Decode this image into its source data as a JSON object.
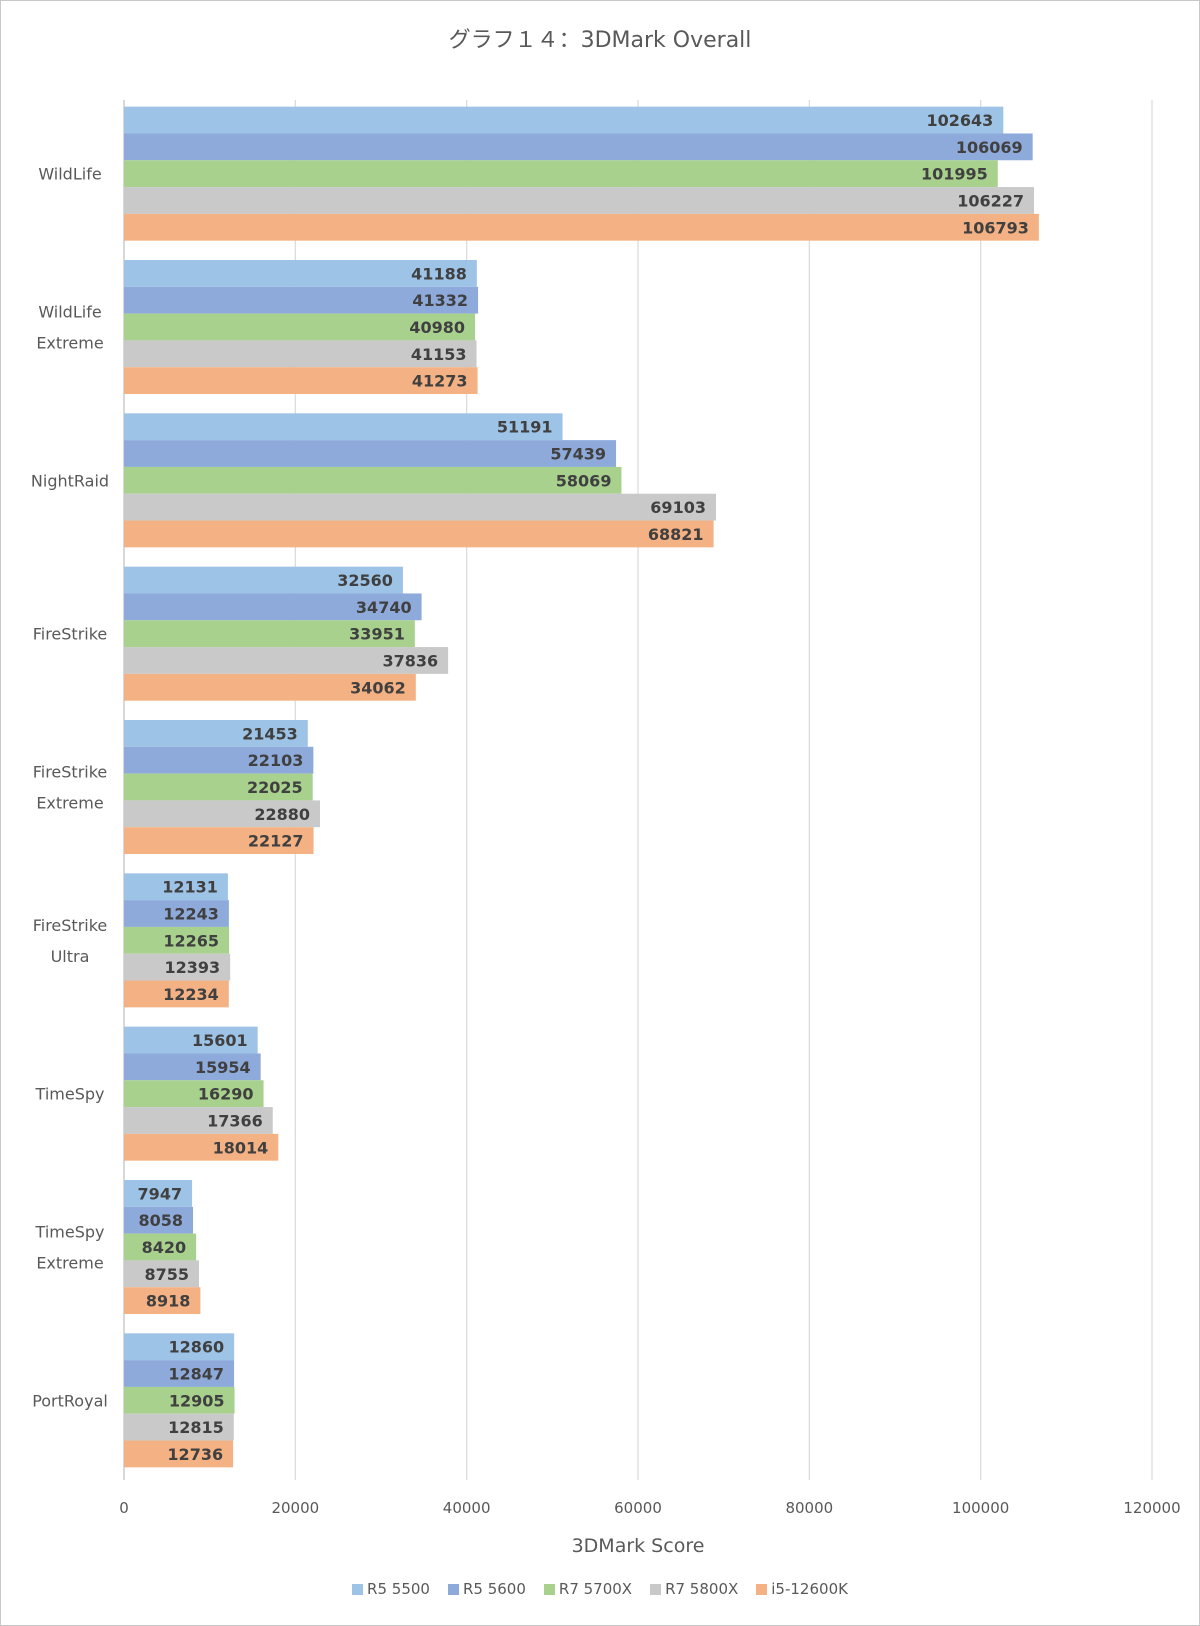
{
  "chart_data": {
    "type": "bar",
    "orientation": "horizontal",
    "title": "グラフ１４：3DMark Overall",
    "xlabel": "3DMark Score",
    "ylabel": "",
    "xlim": [
      0,
      120000
    ],
    "x_ticks": [
      "0",
      "20000",
      "40000",
      "60000",
      "80000",
      "100000",
      "120000"
    ],
    "grid": "vertical",
    "legend_position": "bottom",
    "data_labels": true,
    "categories": [
      [
        "WildLife"
      ],
      [
        "WildLife",
        "Extreme"
      ],
      [
        "NightRaid"
      ],
      [
        "FireStrike"
      ],
      [
        "FireStrike",
        "Extreme"
      ],
      [
        "FireStrike",
        "Ultra"
      ],
      [
        "TimeSpy"
      ],
      [
        "TimeSpy",
        "Extreme"
      ],
      [
        "PortRoyal"
      ]
    ],
    "series": [
      {
        "name": "R5 5500",
        "color": "#9dc3e6",
        "values": [
          102643,
          41188,
          51191,
          32560,
          21453,
          12131,
          15601,
          7947,
          12860
        ]
      },
      {
        "name": "R5 5600",
        "color": "#8eaadb",
        "values": [
          106069,
          41332,
          57439,
          34740,
          22103,
          12243,
          15954,
          8058,
          12847
        ]
      },
      {
        "name": "R7 5700X",
        "color": "#a9d18e",
        "values": [
          101995,
          40980,
          58069,
          33951,
          22025,
          12265,
          16290,
          8420,
          12905
        ]
      },
      {
        "name": "R7 5800X",
        "color": "#c9c9c9",
        "values": [
          106227,
          41153,
          69103,
          37836,
          22880,
          12393,
          17366,
          8755,
          12815
        ]
      },
      {
        "name": "i5-12600K",
        "color": "#f4b183",
        "values": [
          106793,
          41273,
          68821,
          34062,
          22127,
          12234,
          18014,
          8918,
          12736
        ]
      }
    ]
  }
}
